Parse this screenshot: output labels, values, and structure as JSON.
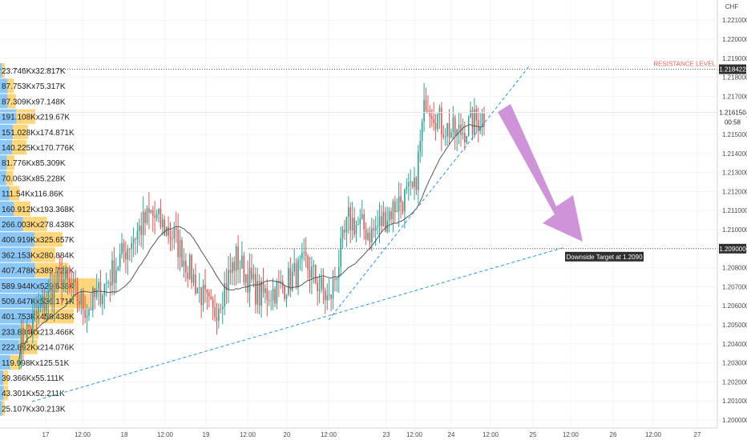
{
  "chart_data": {
    "type": "candlestick",
    "currency": "CHF",
    "y_ticks": [
      "1.200000",
      "1.201000",
      "1.202000",
      "1.203000",
      "1.204000",
      "1.205000",
      "1.206000",
      "1.207000",
      "1.208000",
      "1.209000",
      "1.210000",
      "1.211000",
      "1.212000",
      "1.213000",
      "1.214000",
      "1.215000",
      "1.216000",
      "1.217000",
      "1.218000",
      "1.219000",
      "1.220000",
      "1.221000"
    ],
    "ylim": [
      1.1996,
      1.2218
    ],
    "x_ticks": [
      "17",
      "12:00",
      "18",
      "12:00",
      "19",
      "12:00",
      "20",
      "12:00",
      "23",
      "12:00",
      "24",
      "12:00",
      "25",
      "12:00",
      "26",
      "12:00",
      "27"
    ],
    "resistance": {
      "label": "RESISTANCE LEVEL",
      "price": 1.218422,
      "price_label": "1.218422"
    },
    "target": {
      "label": "Downside Target at 1.2090",
      "price": 1.209,
      "price_label": "1.209000"
    },
    "last_price": {
      "price_label": "1.216150",
      "countdown": "00:58",
      "price": 1.21615
    },
    "ohlc_keypoints": [
      {
        "i": 0,
        "p": 1.204
      },
      {
        "i": 12,
        "p": 1.206
      },
      {
        "i": 22,
        "p": 1.2075
      },
      {
        "i": 35,
        "p": 1.2058
      },
      {
        "i": 45,
        "p": 1.2072
      },
      {
        "i": 58,
        "p": 1.2095
      },
      {
        "i": 68,
        "p": 1.2108
      },
      {
        "i": 80,
        "p": 1.2096
      },
      {
        "i": 92,
        "p": 1.207
      },
      {
        "i": 100,
        "p": 1.2055
      },
      {
        "i": 112,
        "p": 1.2085
      },
      {
        "i": 124,
        "p": 1.2065
      },
      {
        "i": 136,
        "p": 1.207
      },
      {
        "i": 148,
        "p": 1.2082
      },
      {
        "i": 160,
        "p": 1.2062
      },
      {
        "i": 170,
        "p": 1.2105
      },
      {
        "i": 182,
        "p": 1.2098
      },
      {
        "i": 196,
        "p": 1.2115
      },
      {
        "i": 204,
        "p": 1.212
      },
      {
        "i": 210,
        "p": 1.217
      },
      {
        "i": 218,
        "p": 1.2155
      },
      {
        "i": 226,
        "p": 1.215
      },
      {
        "i": 240,
        "p": 1.216
      }
    ],
    "volume_profile": [
      {
        "label": "23.746Kx32.817K",
        "buy": 23.746,
        "sell": 32.817
      },
      {
        "label": "87.753Kx75.317K",
        "buy": 87.753,
        "sell": 75.317
      },
      {
        "label": "87.309Kx97.148K",
        "buy": 87.309,
        "sell": 97.148
      },
      {
        "label": "191.108Kx219.67K",
        "buy": 191.108,
        "sell": 219.67
      },
      {
        "label": "151.028Kx174.871K",
        "buy": 151.028,
        "sell": 174.871
      },
      {
        "label": "140.225Kx170.776K",
        "buy": 140.225,
        "sell": 170.776
      },
      {
        "label": "81.776Kx85.309K",
        "buy": 81.776,
        "sell": 85.309
      },
      {
        "label": "70.063Kx85.228K",
        "buy": 70.063,
        "sell": 85.228
      },
      {
        "label": "111.54Kx116.86K",
        "buy": 111.54,
        "sell": 116.86
      },
      {
        "label": "160.912Kx193.368K",
        "buy": 160.912,
        "sell": 193.368
      },
      {
        "label": "266.003Kx278.438K",
        "buy": 266.003,
        "sell": 278.438
      },
      {
        "label": "400.919Kx325.657K",
        "buy": 400.919,
        "sell": 325.657
      },
      {
        "label": "362.153Kx280.884K",
        "buy": 362.153,
        "sell": 280.884
      },
      {
        "label": "407.478Kx389.722K",
        "buy": 407.478,
        "sell": 389.722
      },
      {
        "label": "589.944Kx529.638K",
        "buy": 589.944,
        "sell": 529.638
      },
      {
        "label": "509.647Kx536.171K",
        "buy": 509.647,
        "sell": 536.171
      },
      {
        "label": "401.753Kx458.438K",
        "buy": 401.753,
        "sell": 458.438
      },
      {
        "label": "233.884Kx213.466K",
        "buy": 233.884,
        "sell": 213.466
      },
      {
        "label": "222.892Kx214.076K",
        "buy": 222.892,
        "sell": 214.076
      },
      {
        "label": "119.998Kx125.51K",
        "buy": 119.998,
        "sell": 125.51
      },
      {
        "label": "39.366Kx55.111K",
        "buy": 39.366,
        "sell": 55.111
      },
      {
        "label": "43.301Kx52.211K",
        "buy": 43.301,
        "sell": 52.211
      },
      {
        "label": "25.107Kx30.213K",
        "buy": 25.107,
        "sell": 30.213
      }
    ],
    "colors": {
      "up": "#26a69a",
      "down": "#ef5350",
      "ma": "#555555",
      "trend": "#2196f3",
      "arrow": "#ce93d8",
      "resistance": "#f06060",
      "vp_buy": "#64b5f6",
      "vp_sell": "#ffc94d"
    }
  }
}
